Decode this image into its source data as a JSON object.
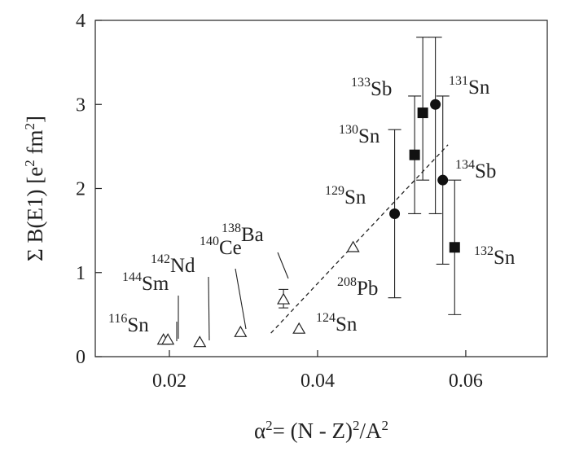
{
  "chart_data": {
    "type": "scatter",
    "xlabel_parts": [
      {
        "text": "α",
        "sup": false
      },
      {
        "text": "2",
        "sup": true
      },
      {
        "text": "= (N - Z)",
        "sup": false
      },
      {
        "text": "2",
        "sup": true
      },
      {
        "text": "/A",
        "sup": false
      },
      {
        "text": "2",
        "sup": true
      }
    ],
    "ylabel_parts": [
      {
        "text": "Σ B(E1) [e",
        "sup": false
      },
      {
        "text": "2",
        "sup": true
      },
      {
        "text": " fm",
        "sup": false
      },
      {
        "text": "2",
        "sup": true
      },
      {
        "text": "]",
        "sup": false
      }
    ],
    "xlim": [
      0.01,
      0.071
    ],
    "ylim": [
      0,
      4
    ],
    "xticks": [
      0.02,
      0.04,
      0.06
    ],
    "xtick_labels": [
      "0.02",
      "0.04",
      "0.06"
    ],
    "yticks": [
      0,
      1,
      2,
      3,
      4
    ],
    "ytick_labels": [
      "0",
      "1",
      "2",
      "3",
      "4"
    ],
    "grid": false,
    "series": [
      {
        "marker": "triangle-open",
        "points": [
          {
            "x": 0.0192,
            "y": 0.2,
            "label_mass": "116",
            "label_el": "Sn"
          },
          {
            "x": 0.0198,
            "y": 0.2,
            "label_mass": "144",
            "label_el": "Sm"
          },
          {
            "x": 0.0241,
            "y": 0.17,
            "label_mass": "142",
            "label_el": "Nd"
          },
          {
            "x": 0.0296,
            "y": 0.29,
            "label_mass": "140",
            "label_el": "Ce"
          },
          {
            "x": 0.0354,
            "y": 0.68,
            "yerr": [
              0.58,
              0.8
            ],
            "label_mass": "138",
            "label_el": "Ba"
          },
          {
            "x": 0.0375,
            "y": 0.33,
            "label_mass": "124",
            "label_el": "Sn"
          },
          {
            "x": 0.0448,
            "y": 1.3,
            "label_mass": "208",
            "label_el": "Pb"
          }
        ]
      },
      {
        "marker": "circle-filled",
        "points": [
          {
            "x": 0.0504,
            "y": 1.7,
            "yerr": [
              0.7,
              2.7
            ],
            "label_mass": "129",
            "label_el": "Sn"
          },
          {
            "x": 0.0559,
            "y": 3.0,
            "yerr": [
              1.7,
              3.8
            ],
            "label_mass": "131",
            "label_el": "Sn"
          },
          {
            "x": 0.0569,
            "y": 2.1,
            "yerr": [
              1.1,
              3.1
            ],
            "label_mass": "134",
            "label_el": "Sb"
          }
        ]
      },
      {
        "marker": "square-filled",
        "points": [
          {
            "x": 0.0531,
            "y": 2.4,
            "yerr": [
              1.7,
              3.1
            ],
            "label_mass": "130",
            "label_el": "Sn"
          },
          {
            "x": 0.0542,
            "y": 2.9,
            "yerr": [
              2.1,
              3.8
            ],
            "label_mass": "133",
            "label_el": "Sb"
          },
          {
            "x": 0.0585,
            "y": 1.3,
            "yerr": [
              0.5,
              2.1
            ],
            "label_mass": "132",
            "label_el": "Sn"
          }
        ]
      }
    ],
    "trend_line": {
      "style": "dashed",
      "x": [
        0.0337,
        0.0576
      ],
      "y": [
        0.28,
        2.52
      ]
    }
  }
}
